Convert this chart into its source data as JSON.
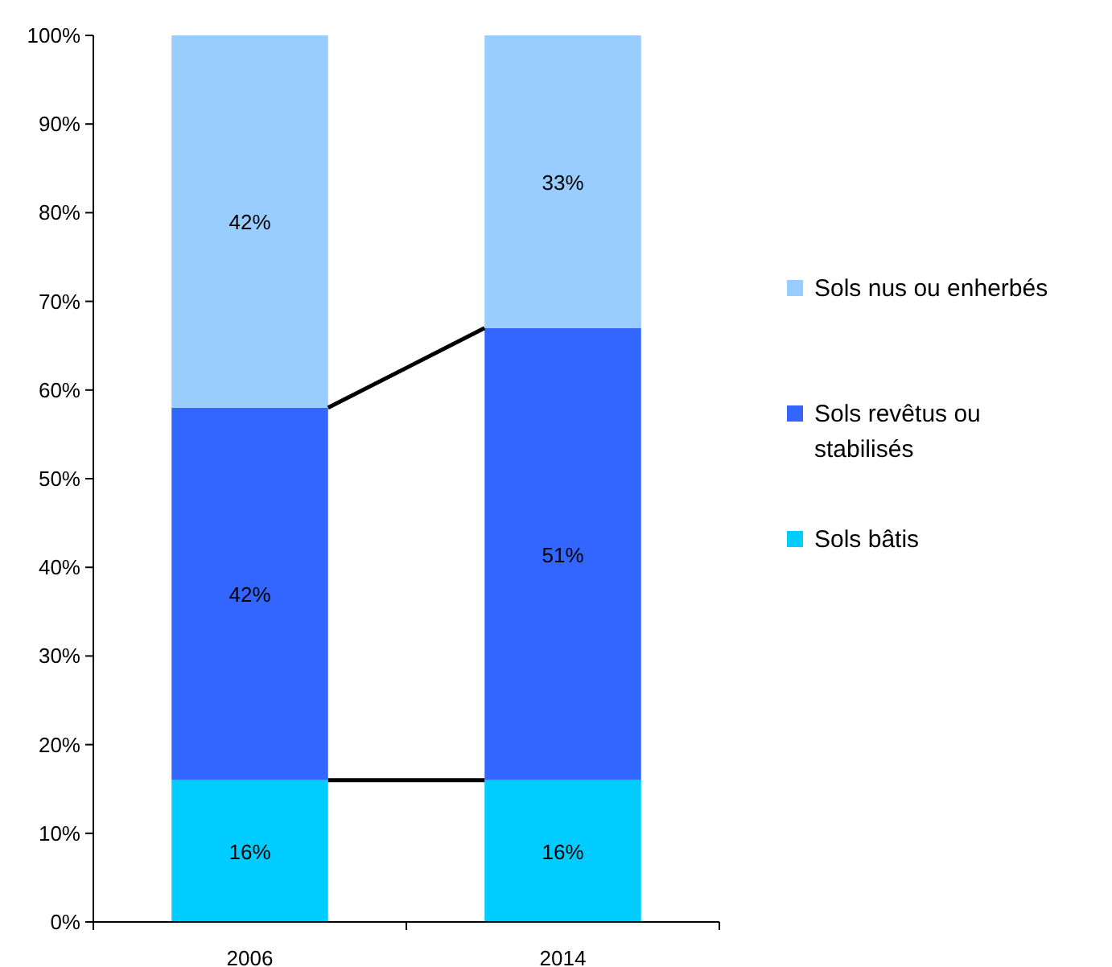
{
  "chart_data": {
    "type": "bar",
    "stacked": true,
    "categories": [
      "2006",
      "2014"
    ],
    "series": [
      {
        "name": "Sols bâtis",
        "color": "#00ccff",
        "values": [
          16,
          16
        ],
        "value_labels": [
          "16%",
          "16%"
        ]
      },
      {
        "name": "Sols revêtus ou stabilisés",
        "color": "#3366ff",
        "values": [
          42,
          51
        ],
        "value_labels": [
          "42%",
          "51%"
        ]
      },
      {
        "name": "Sols nus ou enherbés",
        "color": "#99ccff",
        "values": [
          42,
          33
        ],
        "value_labels": [
          "42%",
          "33%"
        ]
      }
    ],
    "ylim": [
      0,
      100
    ],
    "yticks": [
      {
        "value": 0,
        "label": "0%"
      },
      {
        "value": 10,
        "label": "10%"
      },
      {
        "value": 20,
        "label": "20%"
      },
      {
        "value": 30,
        "label": "30%"
      },
      {
        "value": 40,
        "label": "40%"
      },
      {
        "value": 50,
        "label": "50%"
      },
      {
        "value": 60,
        "label": "60%"
      },
      {
        "value": 70,
        "label": "70%"
      },
      {
        "value": 80,
        "label": "80%"
      },
      {
        "value": 90,
        "label": "90%"
      },
      {
        "value": 100,
        "label": "100%"
      }
    ],
    "grid": false,
    "legend": "right"
  }
}
